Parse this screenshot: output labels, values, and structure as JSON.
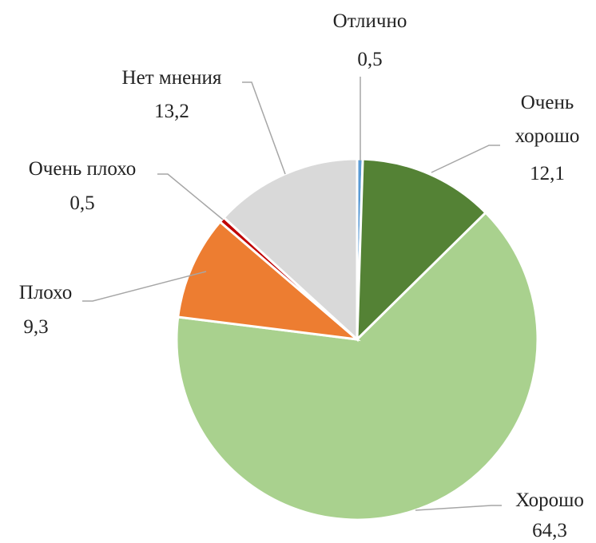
{
  "chart_data": {
    "type": "pie",
    "categories": [
      "Отлично",
      "Очень хорошо",
      "Хорошо",
      "Плохо",
      "Очень плохо",
      "Нет мнения"
    ],
    "values": [
      0.5,
      12.1,
      64.3,
      9.3,
      0.5,
      13.2
    ],
    "value_labels": [
      "0,5",
      "12,1",
      "64,3",
      "9,3",
      "0,5",
      "13,2"
    ],
    "colors": [
      "#5b9bd5",
      "#548235",
      "#a9d18e",
      "#ed7d31",
      "#c00000",
      "#d9d9d9"
    ]
  }
}
